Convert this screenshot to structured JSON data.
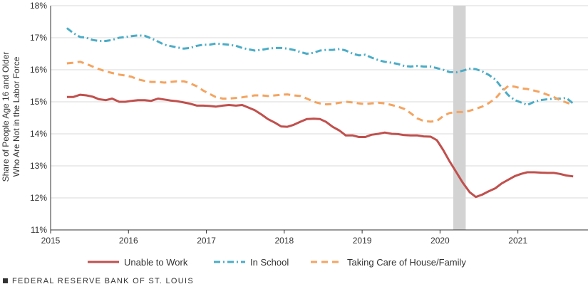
{
  "chart_data": {
    "type": "line",
    "ylabel_lines": [
      "Share of People Age 16 and Older",
      "Who Are Not in the Labor Force"
    ],
    "xlabel": "",
    "xlim": [
      2015,
      2021.9
    ],
    "ylim": [
      11,
      18
    ],
    "x_ticks": [
      2015,
      2016,
      2017,
      2018,
      2019,
      2020,
      2021
    ],
    "y_ticks": [
      11,
      12,
      13,
      14,
      15,
      16,
      17,
      18
    ],
    "y_tick_labels": [
      "11%",
      "12%",
      "13%",
      "14%",
      "15%",
      "16%",
      "17%",
      "18%"
    ],
    "shaded_region": [
      2020.17,
      2020.33
    ],
    "legend_position": "bottom",
    "series": [
      {
        "name": "Unable to Work",
        "color": "#c0504d",
        "dash": "solid",
        "x": [
          2015.21,
          2015.29,
          2015.38,
          2015.46,
          2015.54,
          2015.62,
          2015.71,
          2015.79,
          2015.88,
          2015.96,
          2016.04,
          2016.12,
          2016.21,
          2016.29,
          2016.38,
          2016.46,
          2016.54,
          2016.62,
          2016.71,
          2016.79,
          2016.88,
          2016.96,
          2017.04,
          2017.12,
          2017.21,
          2017.29,
          2017.38,
          2017.46,
          2017.54,
          2017.62,
          2017.71,
          2017.79,
          2017.88,
          2017.96,
          2018.04,
          2018.12,
          2018.21,
          2018.29,
          2018.38,
          2018.46,
          2018.54,
          2018.62,
          2018.71,
          2018.79,
          2018.88,
          2018.96,
          2019.04,
          2019.12,
          2019.21,
          2019.29,
          2019.38,
          2019.46,
          2019.54,
          2019.62,
          2019.71,
          2019.79,
          2019.88,
          2019.96,
          2020.04,
          2020.12,
          2020.21,
          2020.29,
          2020.38,
          2020.46,
          2020.54,
          2020.62,
          2020.71,
          2020.79,
          2020.88,
          2020.96,
          2021.04,
          2021.12,
          2021.21,
          2021.29,
          2021.38,
          2021.46,
          2021.54,
          2021.62,
          2021.71
        ],
        "y": [
          15.15,
          15.15,
          15.22,
          15.2,
          15.16,
          15.08,
          15.05,
          15.1,
          15.0,
          15.0,
          15.03,
          15.05,
          15.05,
          15.03,
          15.1,
          15.07,
          15.04,
          15.02,
          14.98,
          14.94,
          14.88,
          14.88,
          14.87,
          14.85,
          14.88,
          14.9,
          14.88,
          14.9,
          14.82,
          14.74,
          14.6,
          14.46,
          14.35,
          14.23,
          14.22,
          14.28,
          14.38,
          14.46,
          14.47,
          14.46,
          14.37,
          14.22,
          14.1,
          13.95,
          13.95,
          13.9,
          13.9,
          13.97,
          14.0,
          14.04,
          14.0,
          13.99,
          13.96,
          13.95,
          13.95,
          13.92,
          13.91,
          13.8,
          13.5,
          13.15,
          12.8,
          12.48,
          12.18,
          12.03,
          12.1,
          12.2,
          12.3,
          12.45,
          12.57,
          12.68,
          12.75,
          12.8,
          12.8,
          12.79,
          12.78,
          12.78,
          12.75,
          12.7,
          12.67
        ]
      },
      {
        "name": "In School",
        "color": "#4bacc6",
        "dash": "dashdot",
        "x": [
          2015.21,
          2015.29,
          2015.38,
          2015.46,
          2015.54,
          2015.62,
          2015.71,
          2015.79,
          2015.88,
          2015.96,
          2016.04,
          2016.12,
          2016.21,
          2016.29,
          2016.38,
          2016.46,
          2016.54,
          2016.62,
          2016.71,
          2016.79,
          2016.88,
          2016.96,
          2017.04,
          2017.12,
          2017.21,
          2017.29,
          2017.38,
          2017.46,
          2017.54,
          2017.62,
          2017.71,
          2017.79,
          2017.88,
          2017.96,
          2018.04,
          2018.12,
          2018.21,
          2018.29,
          2018.38,
          2018.46,
          2018.54,
          2018.62,
          2018.71,
          2018.79,
          2018.88,
          2018.96,
          2019.04,
          2019.12,
          2019.21,
          2019.29,
          2019.38,
          2019.46,
          2019.54,
          2019.62,
          2019.71,
          2019.79,
          2019.88,
          2019.96,
          2020.04,
          2020.12,
          2020.21,
          2020.29,
          2020.38,
          2020.46,
          2020.54,
          2020.62,
          2020.71,
          2020.79,
          2020.88,
          2020.96,
          2021.04,
          2021.12,
          2021.21,
          2021.29,
          2021.38,
          2021.46,
          2021.54,
          2021.62,
          2021.71
        ],
        "y": [
          17.3,
          17.15,
          17.02,
          17.0,
          16.93,
          16.9,
          16.9,
          16.93,
          17.0,
          17.02,
          17.05,
          17.07,
          17.06,
          16.98,
          16.88,
          16.78,
          16.74,
          16.7,
          16.66,
          16.68,
          16.75,
          16.78,
          16.78,
          16.82,
          16.8,
          16.78,
          16.75,
          16.68,
          16.64,
          16.6,
          16.62,
          16.66,
          16.68,
          16.68,
          16.66,
          16.62,
          16.55,
          16.5,
          16.53,
          16.6,
          16.62,
          16.62,
          16.65,
          16.6,
          16.5,
          16.45,
          16.47,
          16.38,
          16.3,
          16.25,
          16.22,
          16.18,
          16.12,
          16.1,
          16.12,
          16.1,
          16.1,
          16.05,
          16.0,
          15.93,
          15.92,
          15.97,
          16.03,
          16.02,
          15.95,
          15.85,
          15.7,
          15.45,
          15.2,
          15.05,
          14.98,
          14.9,
          15.0,
          15.05,
          15.08,
          15.1,
          15.1,
          15.12,
          14.95
        ]
      },
      {
        "name": "Taking Care of House/Family",
        "color": "#f4a460",
        "dash": "dash",
        "x": [
          2015.21,
          2015.29,
          2015.38,
          2015.46,
          2015.54,
          2015.62,
          2015.71,
          2015.79,
          2015.88,
          2015.96,
          2016.04,
          2016.12,
          2016.21,
          2016.29,
          2016.38,
          2016.46,
          2016.54,
          2016.62,
          2016.71,
          2016.79,
          2016.88,
          2016.96,
          2017.04,
          2017.12,
          2017.21,
          2017.29,
          2017.38,
          2017.46,
          2017.54,
          2017.62,
          2017.71,
          2017.79,
          2017.88,
          2017.96,
          2018.04,
          2018.12,
          2018.21,
          2018.29,
          2018.38,
          2018.46,
          2018.54,
          2018.62,
          2018.71,
          2018.79,
          2018.88,
          2018.96,
          2019.04,
          2019.12,
          2019.21,
          2019.29,
          2019.38,
          2019.46,
          2019.54,
          2019.62,
          2019.71,
          2019.79,
          2019.88,
          2019.96,
          2020.04,
          2020.12,
          2020.21,
          2020.29,
          2020.38,
          2020.46,
          2020.54,
          2020.62,
          2020.71,
          2020.79,
          2020.88,
          2020.96,
          2021.04,
          2021.12,
          2021.21,
          2021.29,
          2021.38,
          2021.46,
          2021.54,
          2021.62,
          2021.71
        ],
        "y": [
          16.2,
          16.22,
          16.25,
          16.18,
          16.1,
          16.02,
          15.95,
          15.9,
          15.85,
          15.82,
          15.78,
          15.7,
          15.65,
          15.62,
          15.62,
          15.6,
          15.62,
          15.64,
          15.64,
          15.58,
          15.48,
          15.35,
          15.25,
          15.15,
          15.1,
          15.1,
          15.12,
          15.14,
          15.17,
          15.2,
          15.2,
          15.18,
          15.2,
          15.22,
          15.23,
          15.2,
          15.18,
          15.1,
          15.0,
          14.95,
          14.92,
          14.93,
          14.97,
          15.0,
          14.98,
          14.95,
          14.93,
          14.95,
          14.97,
          14.95,
          14.9,
          14.85,
          14.78,
          14.65,
          14.48,
          14.4,
          14.38,
          14.4,
          14.55,
          14.65,
          14.68,
          14.68,
          14.72,
          14.78,
          14.85,
          14.95,
          15.1,
          15.32,
          15.5,
          15.47,
          15.42,
          15.4,
          15.35,
          15.3,
          15.22,
          15.15,
          15.05,
          14.98,
          14.9
        ]
      }
    ]
  },
  "footer": {
    "source": "FEDERAL RESERVE BANK OF ST. LOUIS"
  }
}
